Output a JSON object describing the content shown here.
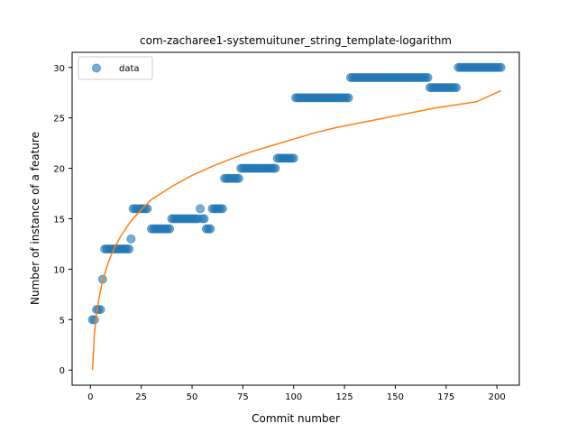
{
  "chart_data": {
    "type": "scatter",
    "title": "com-zacharee1-systemuituner_string_template-logarithm",
    "xlabel": "Commit number",
    "ylabel": "Number of instance of a feature",
    "xlim": [
      -9,
      211
    ],
    "ylim": [
      -1.5,
      31.5
    ],
    "xticks": [
      0,
      25,
      50,
      75,
      100,
      125,
      150,
      175,
      200
    ],
    "yticks": [
      0,
      5,
      10,
      15,
      20,
      25,
      30
    ],
    "grid": false,
    "legend_position": "upper-left",
    "legend": [
      {
        "label": "data",
        "marker": "circle",
        "color": "#1f77b4"
      }
    ],
    "series": [
      {
        "name": "data",
        "kind": "scatter",
        "color": "#1f77b4",
        "points": [
          [
            1,
            5
          ],
          [
            2,
            5
          ],
          [
            3,
            6
          ],
          [
            4,
            6
          ],
          [
            5,
            6
          ],
          [
            6,
            9
          ],
          [
            7,
            12
          ],
          [
            8,
            12
          ],
          [
            9,
            12
          ],
          [
            10,
            12
          ],
          [
            11,
            12
          ],
          [
            12,
            12
          ],
          [
            13,
            12
          ],
          [
            14,
            12
          ],
          [
            15,
            12
          ],
          [
            16,
            12
          ],
          [
            17,
            12
          ],
          [
            18,
            12
          ],
          [
            19,
            12
          ],
          [
            20,
            13
          ],
          [
            21,
            16
          ],
          [
            22,
            16
          ],
          [
            23,
            16
          ],
          [
            24,
            16
          ],
          [
            25,
            16
          ],
          [
            26,
            16
          ],
          [
            27,
            16
          ],
          [
            28,
            16
          ],
          [
            30,
            14
          ],
          [
            31,
            14
          ],
          [
            32,
            14
          ],
          [
            33,
            14
          ],
          [
            34,
            14
          ],
          [
            35,
            14
          ],
          [
            36,
            14
          ],
          [
            37,
            14
          ],
          [
            38,
            14
          ],
          [
            39,
            14
          ],
          [
            40,
            15
          ],
          [
            41,
            15
          ],
          [
            42,
            15
          ],
          [
            43,
            15
          ],
          [
            44,
            15
          ],
          [
            45,
            15
          ],
          [
            46,
            15
          ],
          [
            47,
            15
          ],
          [
            48,
            15
          ],
          [
            49,
            15
          ],
          [
            50,
            15
          ],
          [
            51,
            15
          ],
          [
            52,
            15
          ],
          [
            53,
            15
          ],
          [
            54,
            16
          ],
          [
            55,
            15
          ],
          [
            56,
            15
          ],
          [
            57,
            14
          ],
          [
            58,
            14
          ],
          [
            59,
            14
          ],
          [
            60,
            16
          ],
          [
            61,
            16
          ],
          [
            62,
            16
          ],
          [
            63,
            16
          ],
          [
            64,
            16
          ],
          [
            65,
            16
          ],
          [
            66,
            19
          ],
          [
            67,
            19
          ],
          [
            68,
            19
          ],
          [
            69,
            19
          ],
          [
            70,
            19
          ],
          [
            71,
            19
          ],
          [
            72,
            19
          ],
          [
            73,
            19
          ],
          [
            74,
            20
          ],
          [
            75,
            20
          ],
          [
            76,
            20
          ],
          [
            77,
            20
          ],
          [
            78,
            20
          ],
          [
            79,
            20
          ],
          [
            80,
            20
          ],
          [
            81,
            20
          ],
          [
            82,
            20
          ],
          [
            83,
            20
          ],
          [
            84,
            20
          ],
          [
            85,
            20
          ],
          [
            86,
            20
          ],
          [
            87,
            20
          ],
          [
            88,
            20
          ],
          [
            89,
            20
          ],
          [
            90,
            20
          ],
          [
            91,
            20
          ],
          [
            92,
            21
          ],
          [
            93,
            21
          ],
          [
            94,
            21
          ],
          [
            95,
            21
          ],
          [
            96,
            21
          ],
          [
            97,
            21
          ],
          [
            98,
            21
          ],
          [
            99,
            21
          ],
          [
            100,
            21
          ],
          [
            101,
            27
          ],
          [
            102,
            27
          ],
          [
            103,
            27
          ],
          [
            104,
            27
          ],
          [
            105,
            27
          ],
          [
            106,
            27
          ],
          [
            107,
            27
          ],
          [
            108,
            27
          ],
          [
            109,
            27
          ],
          [
            110,
            27
          ],
          [
            111,
            27
          ],
          [
            112,
            27
          ],
          [
            113,
            27
          ],
          [
            114,
            27
          ],
          [
            115,
            27
          ],
          [
            116,
            27
          ],
          [
            117,
            27
          ],
          [
            118,
            27
          ],
          [
            119,
            27
          ],
          [
            120,
            27
          ],
          [
            121,
            27
          ],
          [
            122,
            27
          ],
          [
            123,
            27
          ],
          [
            124,
            27
          ],
          [
            125,
            27
          ],
          [
            126,
            27
          ],
          [
            127,
            27
          ],
          [
            128,
            29
          ],
          [
            129,
            29
          ],
          [
            130,
            29
          ],
          [
            131,
            29
          ],
          [
            132,
            29
          ],
          [
            133,
            29
          ],
          [
            134,
            29
          ],
          [
            135,
            29
          ],
          [
            136,
            29
          ],
          [
            137,
            29
          ],
          [
            138,
            29
          ],
          [
            139,
            29
          ],
          [
            140,
            29
          ],
          [
            141,
            29
          ],
          [
            142,
            29
          ],
          [
            143,
            29
          ],
          [
            144,
            29
          ],
          [
            145,
            29
          ],
          [
            146,
            29
          ],
          [
            147,
            29
          ],
          [
            148,
            29
          ],
          [
            149,
            29
          ],
          [
            150,
            29
          ],
          [
            151,
            29
          ],
          [
            152,
            29
          ],
          [
            153,
            29
          ],
          [
            154,
            29
          ],
          [
            155,
            29
          ],
          [
            156,
            29
          ],
          [
            157,
            29
          ],
          [
            158,
            29
          ],
          [
            159,
            29
          ],
          [
            160,
            29
          ],
          [
            161,
            29
          ],
          [
            162,
            29
          ],
          [
            163,
            29
          ],
          [
            164,
            29
          ],
          [
            165,
            29
          ],
          [
            166,
            29
          ],
          [
            167,
            28
          ],
          [
            168,
            28
          ],
          [
            169,
            28
          ],
          [
            170,
            28
          ],
          [
            171,
            28
          ],
          [
            172,
            28
          ],
          [
            173,
            28
          ],
          [
            174,
            28
          ],
          [
            175,
            28
          ],
          [
            176,
            28
          ],
          [
            177,
            28
          ],
          [
            178,
            28
          ],
          [
            179,
            28
          ],
          [
            180,
            28
          ],
          [
            181,
            30
          ],
          [
            182,
            30
          ],
          [
            183,
            30
          ],
          [
            184,
            30
          ],
          [
            185,
            30
          ],
          [
            186,
            30
          ],
          [
            187,
            30
          ],
          [
            188,
            30
          ],
          [
            189,
            30
          ],
          [
            190,
            30
          ],
          [
            191,
            30
          ],
          [
            192,
            30
          ],
          [
            193,
            30
          ],
          [
            194,
            30
          ],
          [
            195,
            30
          ],
          [
            196,
            30
          ],
          [
            197,
            30
          ],
          [
            198,
            30
          ],
          [
            199,
            30
          ],
          [
            200,
            30
          ],
          [
            201,
            30
          ],
          [
            202,
            30
          ]
        ]
      },
      {
        "kind": "line",
        "color": "#ff7f0e",
        "points": [
          [
            1,
            0.0
          ],
          [
            2,
            3.7
          ],
          [
            3,
            5.4
          ],
          [
            4,
            6.9
          ],
          [
            5,
            7.9
          ],
          [
            6,
            8.8
          ],
          [
            8,
            10.2
          ],
          [
            10,
            11.3
          ],
          [
            12,
            12.2
          ],
          [
            15,
            13.3
          ],
          [
            20,
            14.8
          ],
          [
            25,
            15.9
          ],
          [
            30,
            16.9
          ],
          [
            40,
            18.2
          ],
          [
            50,
            19.3
          ],
          [
            60,
            20.2
          ],
          [
            70,
            21.0
          ],
          [
            80,
            21.7
          ],
          [
            90,
            22.3
          ],
          [
            100,
            22.9
          ],
          [
            110,
            23.5
          ],
          [
            120,
            24.0
          ],
          [
            130,
            24.4
          ],
          [
            140,
            24.8
          ],
          [
            150,
            25.2
          ],
          [
            160,
            25.6
          ],
          [
            170,
            26.0
          ],
          [
            180,
            26.3
          ],
          [
            190,
            26.6
          ],
          [
            202,
            27.7
          ]
        ]
      }
    ]
  }
}
